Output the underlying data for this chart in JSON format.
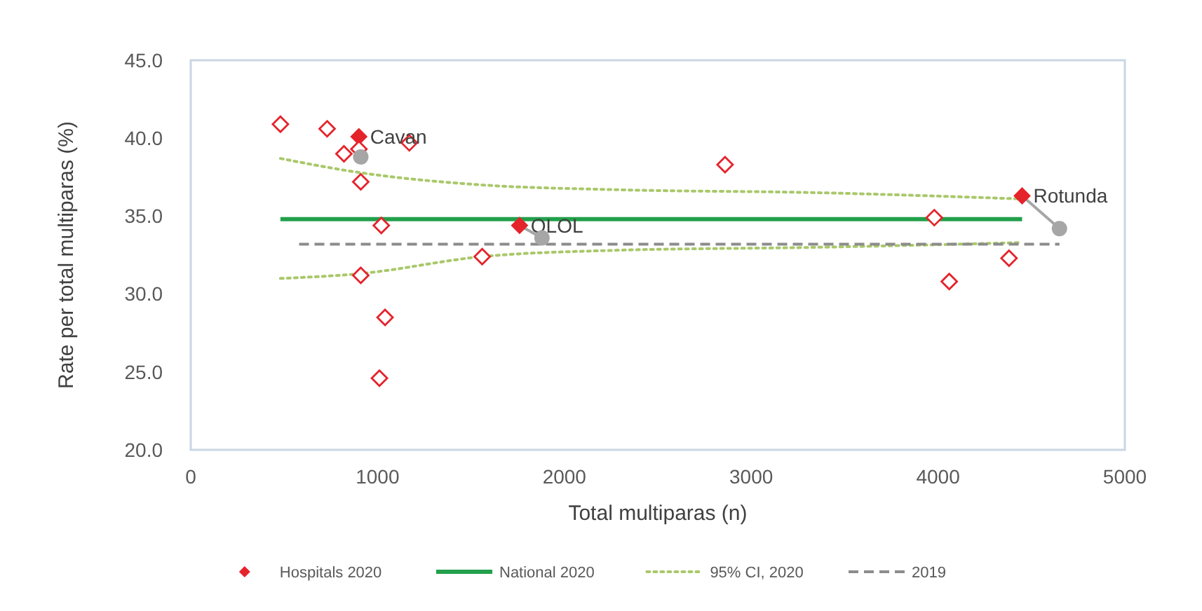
{
  "chart_data": {
    "type": "scatter",
    "xlabel": "Total multiparas (n)",
    "ylabel": "Rate per total multiparas (%)",
    "xlim": [
      0,
      5000
    ],
    "xticks": [
      0,
      1000,
      2000,
      3000,
      4000,
      5000
    ],
    "ylim": [
      20,
      45
    ],
    "yticks": [
      {
        "value": 20,
        "label": "20.0"
      },
      {
        "value": 25,
        "label": "25.0"
      },
      {
        "value": 30,
        "label": "30.0"
      },
      {
        "value": 35,
        "label": "35.0"
      },
      {
        "value": 40,
        "label": "40.0"
      },
      {
        "value": 45,
        "label": "45.0"
      }
    ],
    "legend": "bottom",
    "series": [
      {
        "name": "Hospitals 2020",
        "color": "#e5232b",
        "marker": "diamond",
        "x": [
          480,
          730,
          900,
          1170,
          820,
          900,
          910,
          1020,
          1760,
          1560,
          910,
          1040,
          1010,
          2860,
          4450,
          3980,
          4380,
          4060
        ],
        "values": [
          40.9,
          40.6,
          40.1,
          39.7,
          39.0,
          39.3,
          37.2,
          34.4,
          34.4,
          32.4,
          31.2,
          28.5,
          24.6,
          38.3,
          36.3,
          34.9,
          32.3,
          30.8
        ],
        "value_labels": [
          null,
          null,
          "Cavan",
          null,
          null,
          null,
          null,
          null,
          "OLOL",
          null,
          null,
          null,
          null,
          null,
          "Rotunda",
          null,
          null,
          null
        ]
      },
      {
        "name": "National 2020",
        "type": "line",
        "color": "#22a04b",
        "line_style": "solid",
        "marker": "none",
        "x": [
          480,
          4450
        ],
        "values": [
          34.8,
          34.8
        ]
      },
      {
        "name": "95% CI, 2020",
        "type": "line",
        "color": "#a9c86a",
        "line_style": "dotted",
        "marker": "none",
        "x": [
          480,
          900,
          1560,
          2260,
          3360,
          4450
        ],
        "values": [
          38.7,
          37.8,
          37.0,
          36.7,
          36.5,
          36.1
        ]
      },
      {
        "type": "line",
        "color": "#a9c86a",
        "line_style": "dotted",
        "marker": "none",
        "x": [
          480,
          900,
          1560,
          2260,
          3360,
          4450
        ],
        "values": [
          31.0,
          31.3,
          32.4,
          32.8,
          33.0,
          33.3
        ]
      },
      {
        "name": "2019",
        "type": "line",
        "color": "#8c8c8c",
        "line_style": "dashed",
        "marker": "none",
        "x": [
          580,
          4650
        ],
        "values": [
          33.2,
          33.2
        ]
      },
      {
        "type": "line",
        "color": "#a6a6a6",
        "line_style": "solid",
        "marker": "none",
        "x": [
          1760,
          1880
        ],
        "values": [
          34.4,
          33.6
        ]
      },
      {
        "type": "line",
        "color": "#a6a6a6",
        "line_style": "solid",
        "marker": "none",
        "x": [
          4450,
          4650
        ],
        "values": [
          36.3,
          34.2
        ]
      },
      {
        "color": "#a6a6a6",
        "marker": "circle",
        "x": [
          910,
          1880,
          4650
        ],
        "values": [
          38.8,
          33.6,
          34.2
        ]
      }
    ]
  }
}
